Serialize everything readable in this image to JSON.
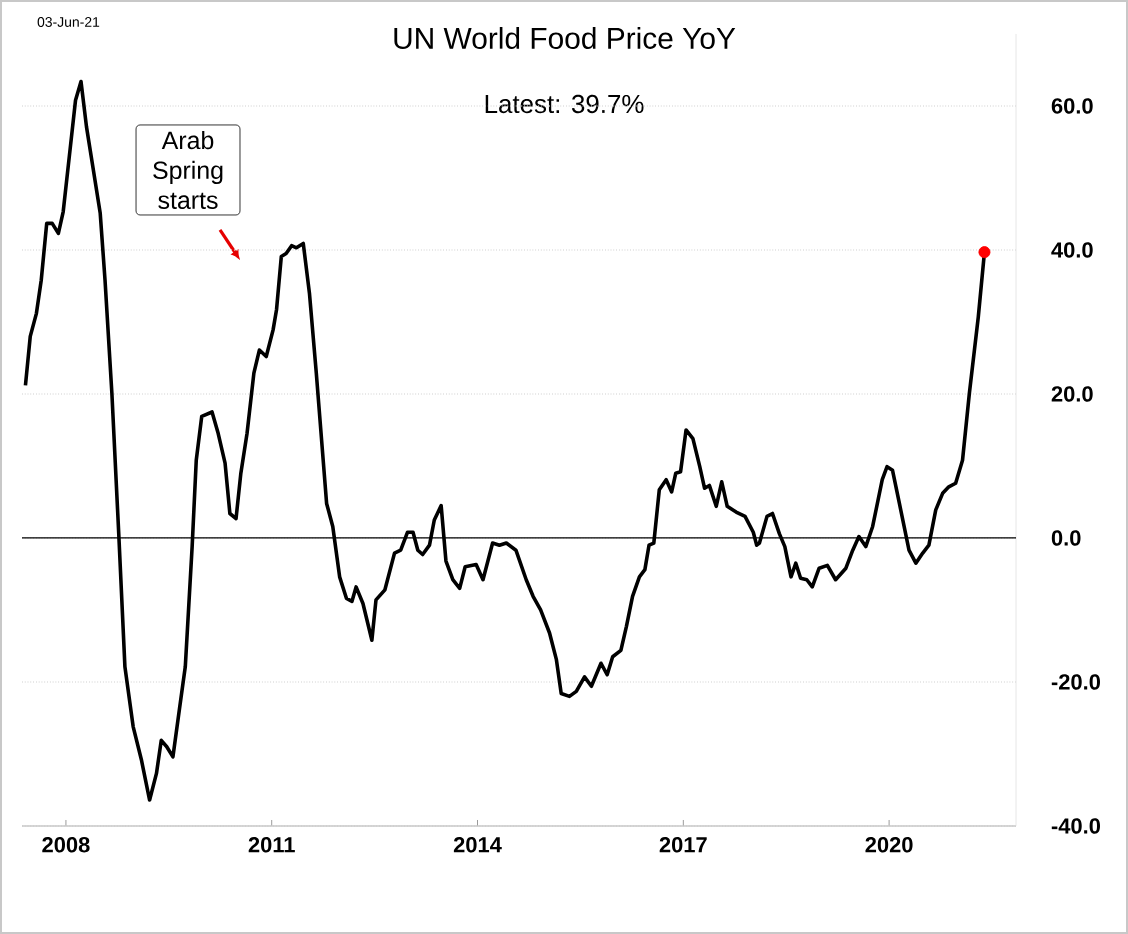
{
  "chart_data": {
    "type": "line",
    "title": "UN World Food Price YoY",
    "annotations": [
      "03-Jun-21",
      "Latest:  39.7%",
      "Arab Spring starts"
    ],
    "xlim": [
      2007.36,
      2021.85
    ],
    "xticks": [
      2008,
      2011,
      2014,
      2017,
      2020
    ],
    "ylim": [
      -40,
      70
    ],
    "yticks": [
      {
        "value": -40,
        "label": "-40.0"
      },
      {
        "value": -20,
        "label": "-20.0"
      },
      {
        "value": 0,
        "label": "0.0"
      },
      {
        "value": 20,
        "label": "20.0"
      },
      {
        "value": 40,
        "label": "40.0"
      },
      {
        "value": 60,
        "label": "60.0"
      }
    ],
    "grid": "y",
    "marker": "none",
    "line_style": "solid",
    "ref_lines": [
      {
        "axis": "y",
        "value": 0,
        "color": "#000000"
      }
    ],
    "series": [
      {
        "color": "#000000",
        "x": [
          2007.41,
          2007.48,
          2007.57,
          2007.64,
          2007.72,
          2007.8,
          2007.89,
          2007.96,
          2008.06,
          2008.14,
          2008.22,
          2008.3,
          2008.4,
          2008.5,
          2008.57,
          2008.67,
          2008.77,
          2008.86,
          2008.98,
          2009.1,
          2009.22,
          2009.32,
          2009.39,
          2009.47,
          2009.56,
          2009.66,
          2009.74,
          2009.84,
          2009.9,
          2009.98,
          2010.13,
          2010.22,
          2010.32,
          2010.39,
          2010.48,
          2010.55,
          2010.64,
          2010.74,
          2010.82,
          2010.92,
          2011.02,
          2011.07,
          2011.14,
          2011.21,
          2011.29,
          2011.36,
          2011.46,
          2011.55,
          2011.65,
          2011.8,
          2011.89,
          2011.99,
          2012.09,
          2012.17,
          2012.23,
          2012.33,
          2012.46,
          2012.52,
          2012.65,
          2012.79,
          2012.88,
          2012.98,
          2013.06,
          2013.13,
          2013.2,
          2013.3,
          2013.37,
          2013.47,
          2013.54,
          2013.64,
          2013.74,
          2013.82,
          2013.98,
          2014.08,
          2014.22,
          2014.32,
          2014.42,
          2014.56,
          2014.71,
          2014.81,
          2014.92,
          2015.05,
          2015.15,
          2015.22,
          2015.34,
          2015.44,
          2015.56,
          2015.66,
          2015.8,
          2015.89,
          2015.97,
          2016.09,
          2016.17,
          2016.26,
          2016.36,
          2016.44,
          2016.5,
          2016.57,
          2016.65,
          2016.75,
          2016.83,
          2016.89,
          2016.96,
          2017.04,
          2017.14,
          2017.24,
          2017.31,
          2017.38,
          2017.48,
          2017.56,
          2017.64,
          2017.77,
          2017.9,
          2018.02,
          2018.07,
          2018.11,
          2018.22,
          2018.3,
          2018.4,
          2018.48,
          2018.57,
          2018.64,
          2018.71,
          2018.8,
          2018.88,
          2018.98,
          2019.1,
          2019.22,
          2019.37,
          2019.47,
          2019.56,
          2019.66,
          2019.76,
          2019.9,
          2019.97,
          2020.05,
          2020.15,
          2020.29,
          2020.39,
          2020.49,
          2020.58,
          2020.68,
          2020.78,
          2020.87,
          2020.97,
          2021.07,
          2021.17,
          2021.3,
          2021.39
        ],
        "values": [
          21.2,
          28.0,
          31.2,
          35.8,
          43.7,
          43.7,
          42.3,
          45.3,
          53.9,
          60.8,
          63.4,
          57.1,
          51.1,
          45.1,
          35.8,
          20.1,
          0.6,
          -17.9,
          -26.2,
          -30.8,
          -36.4,
          -32.7,
          -28.1,
          -29.0,
          -30.4,
          -23.4,
          -17.9,
          -1.2,
          10.8,
          16.9,
          17.5,
          14.5,
          10.4,
          3.4,
          2.7,
          9.0,
          14.5,
          22.9,
          26.1,
          25.2,
          28.9,
          31.7,
          39.1,
          39.5,
          40.6,
          40.3,
          40.9,
          34.0,
          22.9,
          4.8,
          1.6,
          -5.4,
          -8.4,
          -8.8,
          -6.8,
          -9.1,
          -14.2,
          -8.6,
          -7.2,
          -2.1,
          -1.7,
          0.8,
          0.8,
          -1.7,
          -2.3,
          -1.0,
          2.5,
          4.5,
          -3.2,
          -5.8,
          -7.0,
          -4.0,
          -3.7,
          -5.8,
          -0.7,
          -1.0,
          -0.7,
          -1.7,
          -5.8,
          -8.1,
          -10.0,
          -13.2,
          -16.9,
          -21.6,
          -22.0,
          -21.3,
          -19.3,
          -20.6,
          -17.4,
          -19.0,
          -16.5,
          -15.6,
          -12.3,
          -8.1,
          -5.4,
          -4.4,
          -1.0,
          -0.7,
          6.7,
          8.1,
          6.4,
          9.0,
          9.2,
          15.0,
          13.8,
          9.9,
          6.9,
          7.3,
          4.4,
          7.8,
          4.4,
          3.6,
          3.0,
          0.8,
          -1.0,
          -0.7,
          3.0,
          3.4,
          0.6,
          -1.2,
          -5.4,
          -3.5,
          -5.6,
          -5.8,
          -6.8,
          -4.2,
          -3.8,
          -5.8,
          -4.2,
          -1.7,
          0.2,
          -1.2,
          1.6,
          8.1,
          9.9,
          9.4,
          4.8,
          -1.7,
          -3.5,
          -2.1,
          -1.0,
          3.9,
          6.2,
          7.1,
          7.6,
          10.8,
          20.1,
          30.7,
          39.7
        ]
      },
      {
        "type": "scatter",
        "color": "#ff0000",
        "marker": "circle",
        "x": [
          2021.39
        ],
        "values": [
          39.7
        ]
      }
    ]
  }
}
